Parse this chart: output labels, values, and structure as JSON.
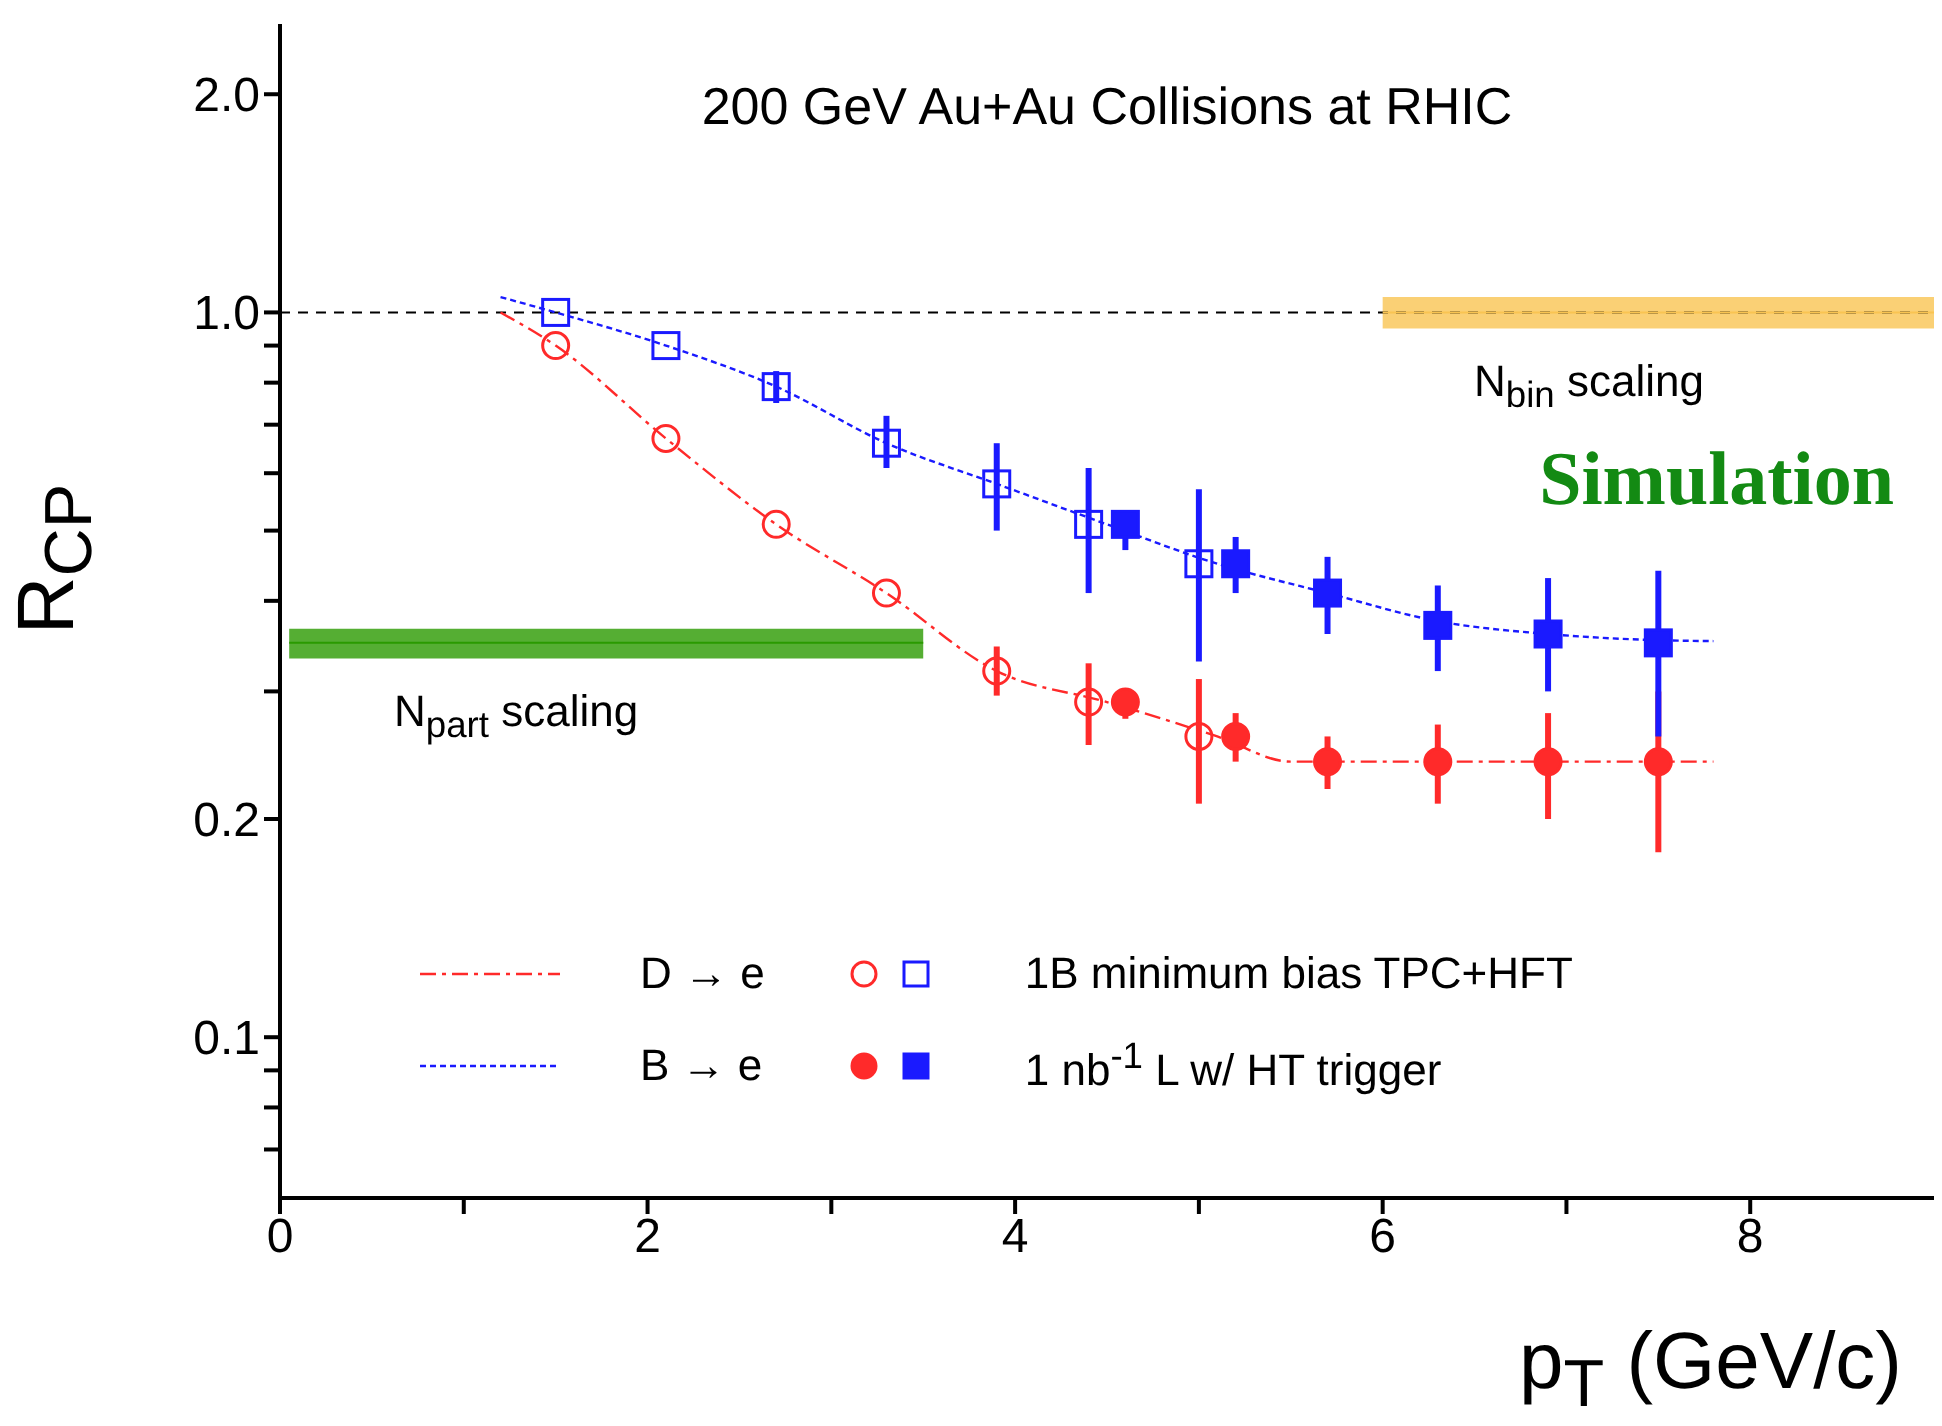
{
  "chart_data": {
    "type": "scatter",
    "title": "200 GeV Au+Au Collisions at RHIC",
    "xlabel": "p$_{T}$ (GeV/c)",
    "ylabel": "R$_{CP}$",
    "annotations": [
      "Simulation",
      "N$_{part}$ scaling",
      "N$_{bin}$ scaling"
    ],
    "xlim": [
      0,
      9
    ],
    "xticks": [
      0,
      {
        "value": 1,
        "label": null
      },
      2,
      {
        "value": 3,
        "label": null
      },
      4,
      {
        "value": 5,
        "label": null
      },
      6,
      {
        "value": 7,
        "label": null
      },
      8
    ],
    "ylim": [
      0.06,
      2.5
    ],
    "log": "y",
    "yticks": [
      {
        "value": 0.07,
        "label": null
      },
      {
        "value": 0.08,
        "label": null
      },
      {
        "value": 0.09,
        "label": null
      },
      0.1,
      0.2,
      {
        "value": 0.3,
        "label": null
      },
      {
        "value": 0.4,
        "label": null
      },
      {
        "value": 0.5,
        "label": null
      },
      {
        "value": 0.6,
        "label": null
      },
      {
        "value": 0.7,
        "label": null
      },
      {
        "value": 0.8,
        "label": null
      },
      {
        "value": 0.9,
        "label": null
      },
      {
        "value": 1,
        "label": "1.0"
      },
      {
        "value": 2,
        "label": "2.0"
      }
    ],
    "ref_lines": [
      {
        "axis": "y",
        "value": 1,
        "color": "#000000",
        "line_style": "dashed"
      }
    ],
    "legend": "bottom left",
    "series": [
      {
        "type": "line",
        "color": "#2a9a00",
        "x": [
          0.05,
          3.5
        ],
        "values": [
          0.35,
          0.35
        ],
        "lower": [
          0.333,
          0.333
        ],
        "upper": [
          0.366,
          0.366
        ],
        "marker": "none"
      },
      {
        "type": "line",
        "color": "#f9c452",
        "x": [
          6,
          9
        ],
        "values": [
          1,
          1
        ],
        "lower": [
          0.95,
          0.95
        ],
        "upper": [
          1.05,
          1.05
        ],
        "marker": "none"
      },
      {
        "type": "line",
        "name": "D → e",
        "color": "#ff2a2a",
        "line_style": "dashed",
        "marker": "none",
        "x": [
          1.2,
          1.5,
          2.1,
          2.7,
          3.3,
          3.9,
          4.5,
          5.1,
          5.5,
          5.7,
          6.3,
          6.9,
          7.5,
          7.8
        ],
        "values": [
          1.0,
          0.9,
          0.67,
          0.51,
          0.41,
          0.32,
          0.29,
          0.26,
          0.24,
          0.24,
          0.24,
          0.24,
          0.24,
          0.24
        ]
      },
      {
        "type": "line",
        "name": "B → e",
        "color": "#1a1aff",
        "line_style": "dotted",
        "marker": "none",
        "x": [
          1.2,
          1.5,
          2.1,
          2.7,
          3.3,
          3.9,
          4.5,
          5.1,
          5.7,
          6.3,
          6.9,
          7.5,
          7.8
        ],
        "values": [
          1.05,
          1.0,
          0.9,
          0.79,
          0.66,
          0.58,
          0.51,
          0.45,
          0.41,
          0.375,
          0.36,
          0.353,
          0.352
        ]
      },
      {
        "color": "#ff2a2a",
        "marker": "circle",
        "x": [
          1.5,
          2.1,
          2.7,
          3.3,
          3.9,
          4.4,
          5.0
        ],
        "values": [
          0.9,
          0.67,
          0.51,
          0.41,
          0.32,
          0.29,
          0.26
        ],
        "errors": [
          null,
          null,
          null,
          null,
          [
            0.296,
            0.346
          ],
          [
            0.253,
            0.328
          ],
          [
            0.21,
            0.312
          ]
        ]
      },
      {
        "name": "1B minimum bias TPC+HFT",
        "color": "#1a1aff",
        "marker": "square",
        "x": [
          1.5,
          2.1,
          2.7,
          3.3,
          3.9,
          4.4,
          5.0
        ],
        "values": [
          1.0,
          0.9,
          0.79,
          0.66,
          0.58,
          0.51,
          0.45
        ],
        "errors": [
          null,
          null,
          [
            0.75,
            0.83
          ],
          [
            0.61,
            0.72
          ],
          [
            0.5,
            0.66
          ],
          [
            0.41,
            0.61
          ],
          [
            0.33,
            0.57
          ]
        ]
      },
      {
        "color": "#ff2a2a",
        "marker": "circle",
        "x": [
          4.6,
          5.2,
          5.7,
          6.3,
          6.9,
          7.5
        ],
        "values": [
          0.29,
          0.26,
          0.24,
          0.24,
          0.24,
          0.24
        ],
        "errors": [
          [
            0.275,
            0.3
          ],
          [
            0.24,
            0.28
          ],
          [
            0.22,
            0.26
          ],
          [
            0.21,
            0.27
          ],
          [
            0.2,
            0.28
          ],
          [
            0.18,
            0.3
          ]
        ]
      },
      {
        "name": "1 nb$^{-1}$ L w/ HT trigger",
        "color": "#1a1aff",
        "marker": "square",
        "x": [
          4.6,
          5.2,
          5.7,
          6.3,
          6.9,
          7.5
        ],
        "values": [
          0.51,
          0.45,
          0.41,
          0.37,
          0.36,
          0.35
        ],
        "errors": [
          [
            0.47,
            0.53
          ],
          [
            0.41,
            0.49
          ],
          [
            0.36,
            0.46
          ],
          [
            0.32,
            0.42
          ],
          [
            0.3,
            0.43
          ],
          [
            0.26,
            0.44
          ]
        ]
      }
    ]
  }
}
